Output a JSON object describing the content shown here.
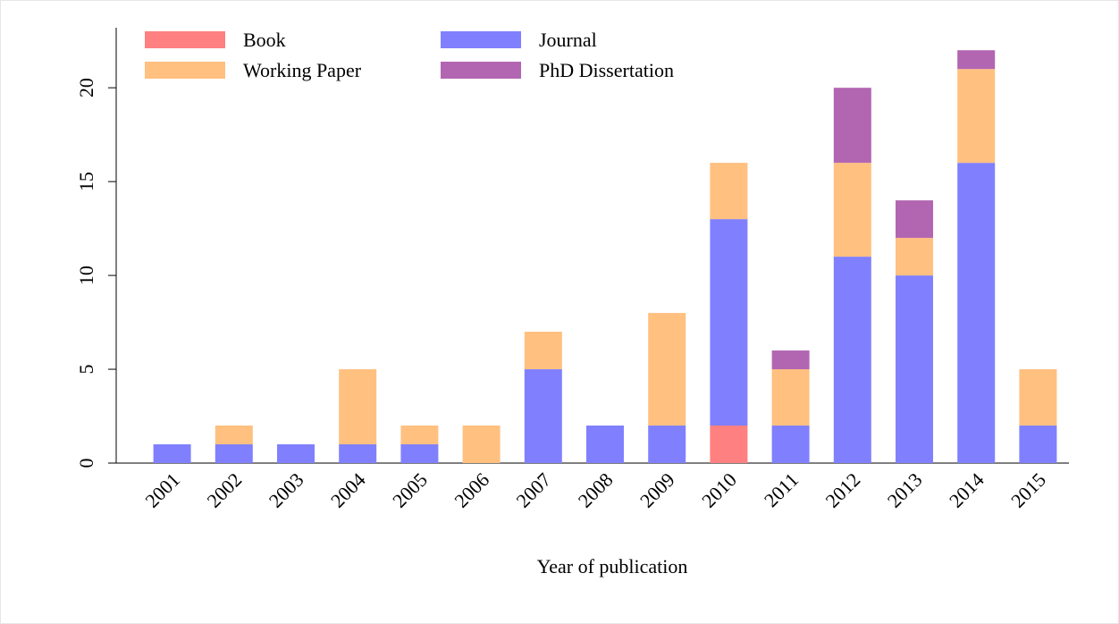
{
  "chart_data": {
    "type": "stacked_bar",
    "x_label": "Year of publication",
    "categories": [
      "2001",
      "2002",
      "2003",
      "2004",
      "2005",
      "2006",
      "2007",
      "2008",
      "2009",
      "2010",
      "2011",
      "2012",
      "2013",
      "2014",
      "2015"
    ],
    "series": [
      {
        "name": "Book",
        "color": "#ff8080",
        "values": [
          0,
          0,
          0,
          0,
          0,
          0,
          0,
          0,
          0,
          2,
          0,
          0,
          0,
          0,
          0
        ]
      },
      {
        "name": "Journal",
        "color": "#8080ff",
        "values": [
          1,
          1,
          1,
          1,
          1,
          0,
          5,
          2,
          2,
          11,
          2,
          11,
          10,
          16,
          2
        ]
      },
      {
        "name": "Working Paper",
        "color": "#ffc080",
        "values": [
          0,
          1,
          0,
          4,
          1,
          2,
          2,
          0,
          6,
          3,
          3,
          5,
          2,
          5,
          3
        ]
      },
      {
        "name": "PhD Dissertation",
        "color": "#b266b2",
        "values": [
          0,
          0,
          0,
          0,
          0,
          0,
          0,
          0,
          0,
          0,
          1,
          4,
          2,
          1,
          0
        ]
      }
    ],
    "ylim": [
      0,
      23.2
    ],
    "yticks": [
      0,
      5,
      10,
      15,
      20
    ],
    "legend": "top-left"
  }
}
